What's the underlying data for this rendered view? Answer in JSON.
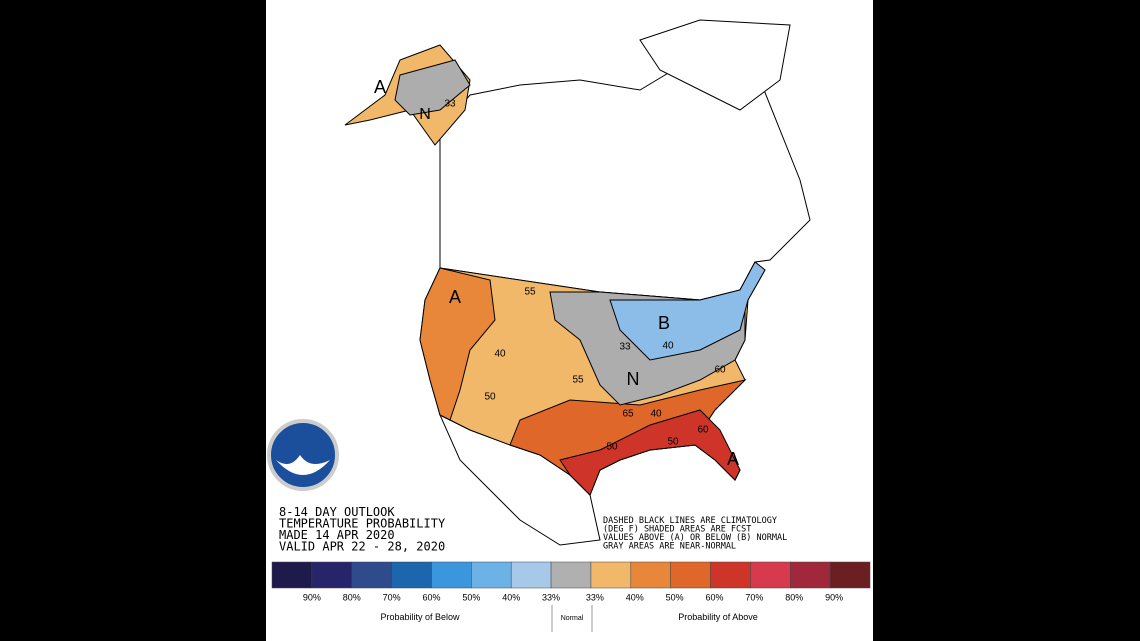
{
  "outlook": {
    "lines": [
      "8-14 DAY OUTLOOK",
      "TEMPERATURE PROBABILITY",
      "MADE  14 APR 2020",
      "VALID  APR 22 - 28, 2020"
    ]
  },
  "note": {
    "lines": [
      "DASHED BLACK LINES ARE CLIMATOLOGY",
      "(DEG F) SHADED AREAS ARE FCST",
      "VALUES ABOVE (A) OR BELOW (B) NORMAL",
      "GRAY AREAS ARE NEAR-NORMAL"
    ]
  },
  "map_labels": [
    "A",
    "N",
    "33",
    "A",
    "55",
    "40",
    "55",
    "50",
    "33",
    "N",
    "B",
    "40",
    "65",
    "40",
    "60",
    "50",
    "50",
    "60",
    "A"
  ],
  "legend": {
    "colors": [
      "#1e1a4c",
      "#28246a",
      "#2f4b8c",
      "#1c66ad",
      "#3b97dd",
      "#6db2e7",
      "#a8c8ea",
      "#b0b0b0",
      "#f2b86a",
      "#e8873a",
      "#e0672a",
      "#cf3429",
      "#d73a4c",
      "#a0283a",
      "#6b1f20"
    ],
    "labels": [
      "90%",
      "80%",
      "70%",
      "60%",
      "50%",
      "40%",
      "33%",
      "33%",
      "40%",
      "50%",
      "60%",
      "70%",
      "80%",
      "90%"
    ],
    "below": "Probability of Below",
    "normal": "Normal",
    "above": "Probability of Above"
  }
}
